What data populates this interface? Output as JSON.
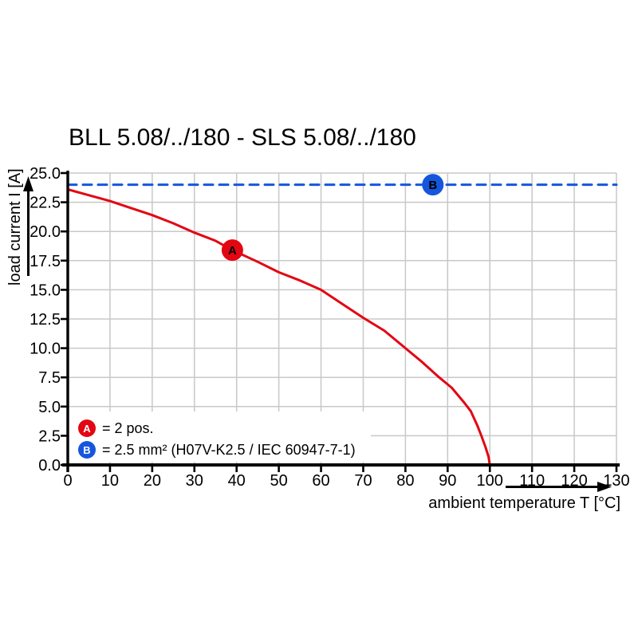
{
  "title": "BLL 5.08/../180 - SLS 5.08/../180",
  "axes": {
    "x_label": "ambient temperature T [°C]",
    "y_label": "load current I [A]"
  },
  "legend": {
    "items": [
      {
        "marker": "A",
        "color": "#e30613",
        "label": "= 2 pos."
      },
      {
        "marker": "B",
        "color": "#1656dd",
        "label": "= 2.5 mm² (H07V-K2.5 / IEC 60947-7-1)"
      }
    ]
  },
  "colors": {
    "curve_red": "#e30613",
    "line_blue": "#1656dd",
    "grid": "#c8c8c8",
    "axis": "#000000",
    "background": "#ffffff",
    "marker_text": "#ffffff"
  },
  "chart_data": {
    "type": "line",
    "title": "BLL 5.08/../180 - SLS 5.08/../180",
    "xlabel": "ambient temperature T [°C]",
    "ylabel": "load current I [A]",
    "xlim": [
      0,
      130
    ],
    "ylim": [
      0,
      25
    ],
    "x_ticks": [
      0,
      10,
      20,
      30,
      40,
      50,
      60,
      70,
      80,
      90,
      100,
      110,
      120,
      130
    ],
    "x_tick_labels": [
      "0",
      "10",
      "20",
      "30",
      "40",
      "50",
      "60",
      "70",
      "80",
      "90",
      "100",
      "110",
      "120",
      "130"
    ],
    "y_ticks": [
      0,
      2.5,
      5,
      7.5,
      10,
      12.5,
      15,
      17.5,
      20,
      22.5,
      25
    ],
    "y_tick_labels": [
      "0.0",
      "2.5",
      "5.0",
      "7.5",
      "10.0",
      "12.5",
      "15.0",
      "17.5",
      "20.0",
      "22.5",
      "25.0"
    ],
    "grid": true,
    "legend_position": "inside-bottom-left",
    "series": [
      {
        "name": "A",
        "label": "2 pos.",
        "color": "#e30613",
        "line_style": "solid",
        "marker_label": "A",
        "marker_at": [
          39,
          18.4
        ],
        "points": [
          [
            0,
            23.6
          ],
          [
            5,
            23.1
          ],
          [
            10,
            22.6
          ],
          [
            15,
            22.0
          ],
          [
            20,
            21.4
          ],
          [
            25,
            20.7
          ],
          [
            30,
            19.9
          ],
          [
            35,
            19.2
          ],
          [
            39,
            18.4
          ],
          [
            45,
            17.4
          ],
          [
            50,
            16.5
          ],
          [
            55,
            15.8
          ],
          [
            60,
            15.0
          ],
          [
            65,
            13.8
          ],
          [
            70,
            12.6
          ],
          [
            75,
            11.5
          ],
          [
            80,
            10.0
          ],
          [
            84,
            8.8
          ],
          [
            88,
            7.5
          ],
          [
            91,
            6.6
          ],
          [
            94,
            5.3
          ],
          [
            95.5,
            4.6
          ],
          [
            97,
            3.4
          ],
          [
            98,
            2.5
          ],
          [
            99,
            1.5
          ],
          [
            99.7,
            0.7
          ],
          [
            100,
            0
          ]
        ]
      },
      {
        "name": "B",
        "label": "2.5 mm² (H07V-K2.5 / IEC 60947-7-1)",
        "color": "#1656dd",
        "line_style": "dashed",
        "marker_label": "B",
        "marker_at": [
          86.5,
          24
        ],
        "points": [
          [
            0,
            24
          ],
          [
            130,
            24
          ]
        ]
      }
    ]
  }
}
